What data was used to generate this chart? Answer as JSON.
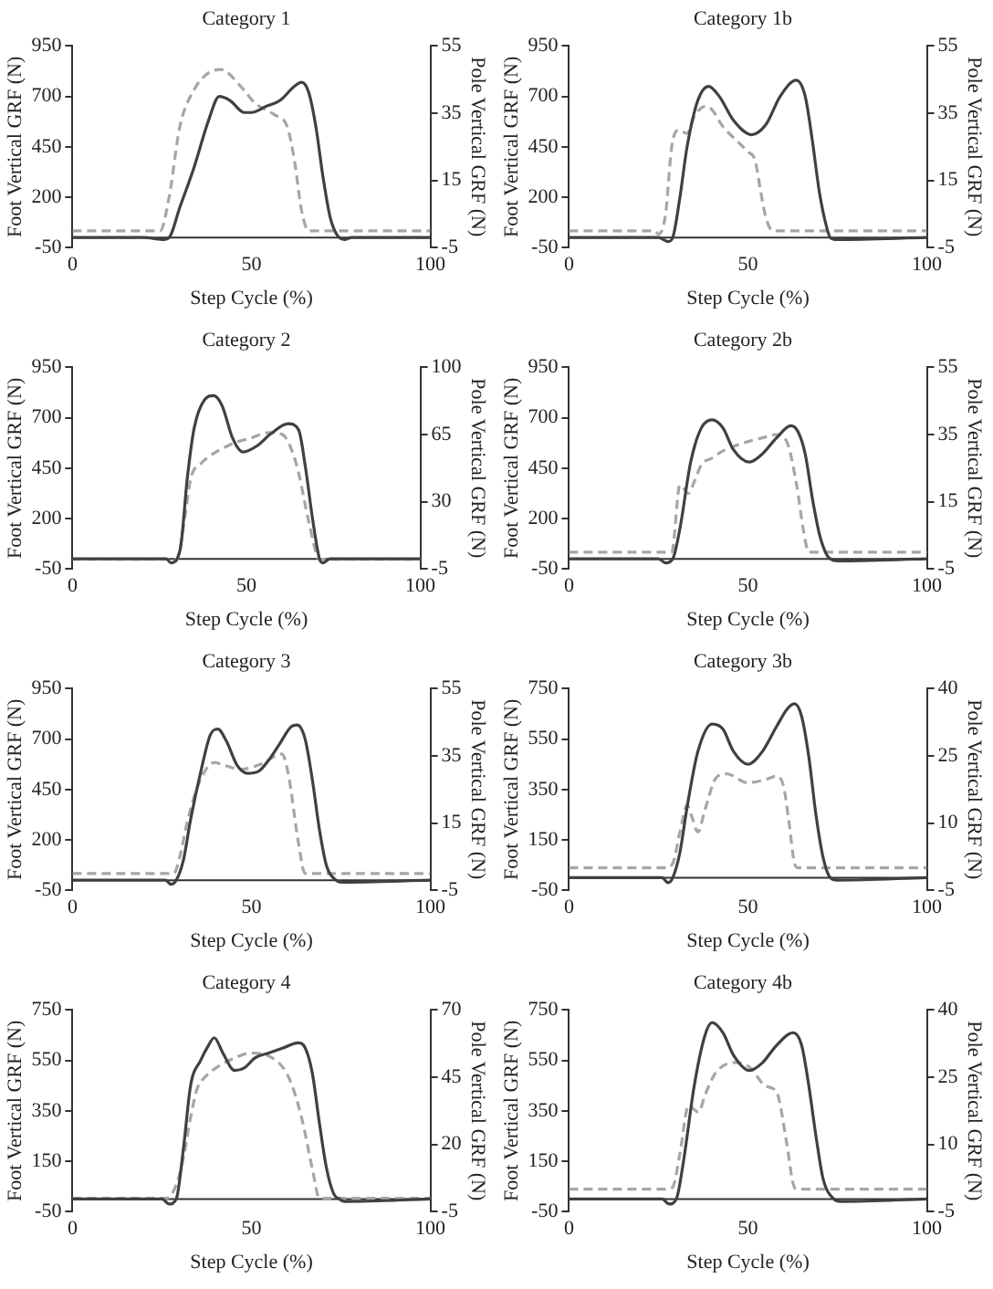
{
  "chart_data": [
    {
      "type": "line",
      "title": "Category 1",
      "xlabel": "Step Cycle (%)",
      "ylabel": "Foot Vertical GRF (N)",
      "y2label": "Pole Vertical GRF (N)",
      "xlim": [
        0,
        100
      ],
      "xticks": [
        0,
        50,
        100
      ],
      "ylim": [
        -50,
        950
      ],
      "yticks": [
        -50,
        200,
        450,
        700,
        950
      ],
      "y2lim": [
        -5,
        55
      ],
      "y2ticks": [
        -5,
        15,
        35,
        55
      ],
      "grid": false,
      "legend": false,
      "marker": "none",
      "series": [
        {
          "color": "#404040",
          "line_style": "solid",
          "x": [
            0,
            20,
            25,
            27,
            30,
            34,
            38,
            41,
            44,
            48,
            50,
            54,
            58,
            62,
            64,
            66,
            68,
            70,
            72,
            74,
            76,
            78,
            100
          ],
          "values": [
            0,
            0,
            -10,
            0,
            150,
            350,
            580,
            700,
            680,
            620,
            620,
            650,
            680,
            750,
            770,
            720,
            550,
            300,
            100,
            10,
            -10,
            0,
            0
          ]
        },
        {
          "color": "#a6a6a6",
          "line_style": "dashed",
          "axis": "y2",
          "x": [
            0,
            23,
            24.5,
            27,
            30,
            34,
            38,
            41.5,
            47,
            51,
            56.5,
            60,
            62,
            64,
            66,
            70,
            100
          ],
          "values": [
            0,
            0,
            0,
            10,
            31,
            42,
            47,
            48,
            43,
            38,
            34.5,
            31,
            21,
            6,
            0,
            0,
            0
          ]
        }
      ]
    },
    {
      "type": "line",
      "title": "Category 1b",
      "xlabel": "Step Cycle (%)",
      "ylabel": "Foot Vertical GRF (N)",
      "y2label": "Pole Vertical GRF (N)",
      "xlim": [
        0,
        100
      ],
      "xticks": [
        0,
        50,
        100
      ],
      "ylim": [
        -50,
        950
      ],
      "yticks": [
        -50,
        200,
        450,
        700,
        950
      ],
      "y2lim": [
        -5,
        55
      ],
      "y2ticks": [
        -5,
        15,
        35,
        55
      ],
      "grid": false,
      "legend": false,
      "marker": "none",
      "series": [
        {
          "color": "#404040",
          "line_style": "solid",
          "x": [
            0,
            25,
            27.7,
            29,
            31,
            33,
            36,
            39,
            42,
            46,
            51,
            55,
            59,
            63.5,
            66,
            68,
            70,
            72,
            73,
            75,
            100
          ],
          "values": [
            0,
            0,
            -20,
            0,
            200,
            450,
            680,
            750,
            700,
            580,
            510,
            560,
            700,
            780,
            700,
            480,
            220,
            50,
            0,
            -10,
            0
          ]
        },
        {
          "color": "#a6a6a6",
          "line_style": "dashed",
          "axis": "y2",
          "x": [
            0,
            24,
            25,
            27,
            28.7,
            30.6,
            33,
            35,
            38,
            40,
            43,
            45.7,
            50,
            52,
            53.5,
            55,
            57,
            100
          ],
          "values": [
            0,
            0,
            -1,
            5,
            25,
            30,
            29,
            34,
            37,
            36,
            31,
            28,
            23.5,
            21,
            12,
            4,
            0,
            0
          ]
        }
      ]
    },
    {
      "type": "line",
      "title": "Category 2",
      "xlabel": "Step Cycle (%)",
      "ylabel": "Foot Vertical GRF (N)",
      "y2label": "Pole Vertical GRF (N)",
      "xlim": [
        0,
        100
      ],
      "xticks": [
        0,
        50,
        100
      ],
      "ylim": [
        -50,
        950
      ],
      "yticks": [
        -50,
        200,
        450,
        700,
        950
      ],
      "y2lim": [
        -5,
        100
      ],
      "y2ticks": [
        -5,
        30,
        65,
        100
      ],
      "grid": false,
      "legend": false,
      "marker": "none",
      "series": [
        {
          "color": "#404040",
          "line_style": "solid",
          "x": [
            0,
            27,
            28.3,
            31,
            33,
            35,
            38,
            40.6,
            43,
            46,
            49,
            53,
            57,
            62,
            65,
            67,
            69,
            71,
            72,
            74,
            100
          ],
          "values": [
            0,
            0,
            -20,
            50,
            400,
            650,
            790,
            810,
            760,
            600,
            530,
            560,
            620,
            670,
            640,
            450,
            200,
            0,
            -20,
            0,
            0
          ]
        },
        {
          "color": "#a6a6a6",
          "line_style": "dashed",
          "axis": "y2",
          "x": [
            0,
            30,
            32,
            34,
            37,
            39.6,
            43.4,
            47,
            51,
            56.6,
            60.4,
            63,
            65,
            68,
            71,
            100
          ],
          "values": [
            0,
            0,
            18,
            42,
            50,
            54,
            58,
            61,
            63,
            66,
            65,
            57,
            45,
            19,
            0,
            0
          ]
        }
      ]
    },
    {
      "type": "line",
      "title": "Category 2b",
      "xlabel": "Step Cycle (%)",
      "ylabel": "Foot Vertical GRF (N)",
      "y2label": "Pole Vertical GRF (N)",
      "xlim": [
        0,
        100
      ],
      "xticks": [
        0,
        50,
        100
      ],
      "ylim": [
        -50,
        950
      ],
      "yticks": [
        -50,
        200,
        450,
        700,
        950
      ],
      "y2lim": [
        -5,
        55
      ],
      "y2ticks": [
        -5,
        15,
        35,
        55
      ],
      "grid": false,
      "legend": false,
      "marker": "none",
      "series": [
        {
          "color": "#404040",
          "line_style": "solid",
          "x": [
            0,
            25,
            27,
            29,
            31,
            34,
            37,
            40,
            43,
            46,
            50.4,
            54,
            58,
            62,
            64,
            66,
            68,
            70,
            72,
            73,
            75,
            100
          ],
          "values": [
            0,
            0,
            -20,
            0,
            150,
            480,
            650,
            690,
            650,
            540,
            480,
            520,
            600,
            660,
            630,
            520,
            300,
            120,
            20,
            0,
            -10,
            0
          ]
        },
        {
          "color": "#a6a6a6",
          "line_style": "dashed",
          "axis": "y2",
          "x": [
            0,
            28.7,
            31,
            33.4,
            35,
            37,
            40,
            42.8,
            46,
            50.4,
            54,
            58,
            60.8,
            63.6,
            65.5,
            67,
            100
          ],
          "values": [
            0,
            0,
            20,
            17.5,
            21,
            26,
            28,
            30,
            31.5,
            33,
            34,
            35,
            33,
            20,
            6.5,
            0,
            0
          ]
        }
      ]
    },
    {
      "type": "line",
      "title": "Category 3",
      "xlabel": "Step Cycle (%)",
      "ylabel": "Foot Vertical GRF (N)",
      "y2label": "Pole Vertical GRF (N)",
      "xlim": [
        0,
        100
      ],
      "xticks": [
        0,
        50,
        100
      ],
      "ylim": [
        -50,
        950
      ],
      "yticks": [
        -50,
        200,
        450,
        700,
        950
      ],
      "y2lim": [
        -5,
        55
      ],
      "y2ticks": [
        -5,
        15,
        35,
        55
      ],
      "grid": false,
      "legend": false,
      "marker": "none",
      "series": [
        {
          "color": "#404040",
          "line_style": "solid",
          "x": [
            0,
            26,
            27.5,
            29,
            31,
            33,
            36,
            38.5,
            40.6,
            43,
            46,
            49,
            52,
            55,
            58,
            61,
            62.8,
            65,
            67,
            69,
            71,
            73.6,
            75,
            100
          ],
          "values": [
            0,
            0,
            -20,
            0,
            100,
            300,
            550,
            720,
            750,
            690,
            570,
            530,
            540,
            600,
            680,
            760,
            770,
            700,
            500,
            250,
            70,
            0,
            -10,
            0
          ]
        },
        {
          "color": "#a6a6a6",
          "line_style": "dashed",
          "axis": "y2",
          "x": [
            0,
            26,
            28.3,
            30,
            32,
            35,
            38,
            39.6,
            43,
            47,
            52.8,
            58.5,
            60.4,
            63,
            65,
            100
          ],
          "values": [
            0,
            0,
            0,
            5,
            15,
            26,
            32,
            33,
            32,
            31,
            32.6,
            35.6,
            29,
            10,
            0,
            0
          ]
        }
      ]
    },
    {
      "type": "line",
      "title": "Category 3b",
      "xlabel": "Step Cycle (%)",
      "ylabel": "Foot Vertical GRF (N)",
      "y2label": "Pole Vertical GRF (N)",
      "xlim": [
        0,
        100
      ],
      "xticks": [
        0,
        50,
        100
      ],
      "ylim": [
        -50,
        750
      ],
      "yticks": [
        -50,
        150,
        350,
        550,
        750
      ],
      "y2lim": [
        -5,
        40
      ],
      "y2ticks": [
        -5,
        10,
        25,
        40
      ],
      "grid": false,
      "legend": false,
      "marker": "none",
      "series": [
        {
          "color": "#404040",
          "line_style": "solid",
          "x": [
            0,
            26,
            27.7,
            29,
            31,
            33,
            36,
            40,
            43,
            46,
            50,
            54,
            58,
            61,
            63,
            65,
            67,
            69,
            71,
            73,
            75,
            100
          ],
          "values": [
            0,
            0,
            -20,
            0,
            100,
            280,
            500,
            610,
            590,
            500,
            450,
            500,
            600,
            670,
            690,
            640,
            480,
            250,
            80,
            0,
            -10,
            0
          ]
        },
        {
          "color": "#a6a6a6",
          "line_style": "dashed",
          "axis": "y2",
          "x": [
            0,
            27,
            29,
            31,
            33,
            34.5,
            36,
            38,
            41,
            44,
            50,
            54,
            56,
            58,
            60,
            61.5,
            63,
            64,
            100
          ],
          "values": [
            0,
            0,
            1,
            8,
            14,
            11,
            8,
            13,
            20,
            21,
            19,
            19.5,
            20,
            20.5,
            18,
            10,
            1,
            0,
            0
          ]
        }
      ]
    },
    {
      "type": "line",
      "title": "Category 4",
      "xlabel": "Step Cycle (%)",
      "ylabel": "Foot Vertical GRF (N)",
      "y2label": "Pole Vertical GRF (N)",
      "xlim": [
        0,
        100
      ],
      "xticks": [
        0,
        50,
        100
      ],
      "ylim": [
        -50,
        750
      ],
      "yticks": [
        -50,
        150,
        350,
        550,
        750
      ],
      "y2lim": [
        -5,
        70
      ],
      "y2ticks": [
        -5,
        20,
        45,
        70
      ],
      "grid": false,
      "legend": false,
      "marker": "none",
      "series": [
        {
          "color": "#404040",
          "line_style": "solid",
          "x": [
            0,
            25,
            27,
            29,
            31,
            33,
            35.8,
            38,
            39.6,
            42,
            45.3,
            48,
            51,
            55,
            59,
            63,
            65,
            67,
            69,
            71,
            73,
            74.5,
            76,
            100
          ],
          "values": [
            0,
            0,
            -20,
            0,
            200,
            450,
            550,
            610,
            640,
            580,
            510,
            520,
            560,
            580,
            600,
            620,
            600,
            500,
            300,
            120,
            20,
            0,
            -10,
            0
          ]
        },
        {
          "color": "#a6a6a6",
          "line_style": "dashed",
          "axis": "y2",
          "x": [
            0,
            26.4,
            29,
            31,
            33,
            34.9,
            37,
            39.6,
            45,
            50,
            54.7,
            60.4,
            64,
            67,
            69,
            100
          ],
          "values": [
            0,
            0,
            5,
            15,
            30,
            41,
            45,
            48,
            52,
            54,
            53,
            45,
            30,
            11,
            0,
            0
          ]
        }
      ]
    },
    {
      "type": "line",
      "title": "Category 4b",
      "xlabel": "Step Cycle (%)",
      "ylabel": "Foot Vertical GRF (N)",
      "y2label": "Pole Vertical GRF (N)",
      "xlim": [
        0,
        100
      ],
      "xticks": [
        0,
        50,
        100
      ],
      "ylim": [
        -50,
        750
      ],
      "yticks": [
        -50,
        150,
        350,
        550,
        750
      ],
      "y2lim": [
        -5,
        40
      ],
      "y2ticks": [
        -5,
        10,
        25,
        40
      ],
      "grid": false,
      "legend": false,
      "marker": "none",
      "series": [
        {
          "color": "#404040",
          "line_style": "solid",
          "x": [
            0,
            26,
            28,
            30,
            32,
            35,
            38,
            40,
            43,
            46,
            50.4,
            54,
            58,
            62.6,
            65,
            67,
            69,
            71,
            74,
            76,
            100
          ],
          "values": [
            0,
            0,
            -20,
            0,
            150,
            450,
            650,
            700,
            660,
            570,
            510,
            540,
            610,
            660,
            610,
            450,
            250,
            80,
            0,
            -10,
            0
          ]
        },
        {
          "color": "#a6a6a6",
          "line_style": "dashed",
          "axis": "y2",
          "x": [
            0,
            27,
            29,
            31,
            33.4,
            36.2,
            38,
            41,
            46.6,
            50.4,
            55,
            58,
            60.8,
            62.6,
            63.6,
            100
          ],
          "values": [
            0,
            0,
            0.5,
            8,
            18.6,
            17.2,
            21,
            26,
            28.3,
            27.3,
            23,
            21.7,
            10.4,
            1.3,
            0,
            0
          ]
        }
      ]
    }
  ]
}
